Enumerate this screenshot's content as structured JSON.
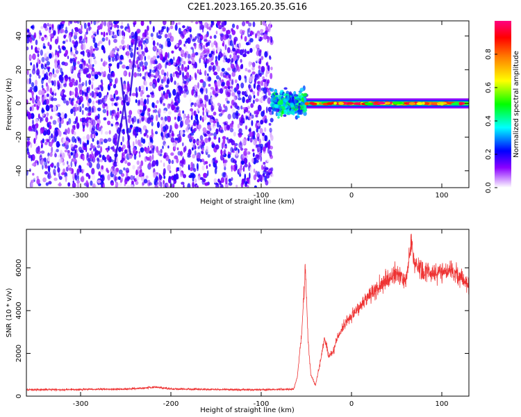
{
  "title": "C2E1.2023.165.20.35.G16",
  "chart_data": [
    {
      "type": "heatmap",
      "xlabel": "Height of straight line (km)",
      "ylabel": "Frequency (Hz)",
      "xlim": [
        -360,
        130
      ],
      "ylim": [
        -50,
        49
      ],
      "xticks": [
        -300,
        -200,
        -100,
        0,
        100
      ],
      "yticks": [
        -40,
        -20,
        0,
        20,
        40
      ],
      "colorbar": {
        "label": "Normalized spectral amplitude",
        "range": [
          0,
          1
        ],
        "ticks": [
          0.0,
          0.2,
          0.4,
          0.6,
          0.8
        ],
        "colormap": [
          "#ffffff",
          "#8b00ff",
          "#0000ff",
          "#00ffff",
          "#00ff00",
          "#ffff00",
          "#ff8000",
          "#ff0000",
          "#ff0080"
        ]
      },
      "regions": [
        {
          "x_range": [
            -360,
            -88
          ],
          "freq_range": [
            -50,
            49
          ],
          "amplitude_range": [
            0.0,
            0.25
          ],
          "pattern": "noise"
        },
        {
          "x_range": [
            -88,
            -50
          ],
          "center_freq": 0,
          "spread_hz": 10,
          "amplitude_range": [
            0.2,
            0.5
          ]
        },
        {
          "x_range": [
            -50,
            130
          ],
          "center_freq": 0,
          "spread_hz": 3,
          "amplitude_range": [
            0.4,
            1.0
          ]
        }
      ],
      "streaks": [
        {
          "x": [
            -245,
            -238
          ],
          "y": [
            5,
            40
          ]
        },
        {
          "x": [
            -262,
            -250
          ],
          "y": [
            -35,
            5
          ]
        },
        {
          "x": [
            -245,
            -255
          ],
          "y": [
            -30,
            15
          ]
        }
      ]
    },
    {
      "type": "line",
      "xlabel": "Height of straight line (km)",
      "ylabel": "SNR (10 * v/v)",
      "xlim": [
        -360,
        130
      ],
      "ylim": [
        0,
        7800
      ],
      "xticks": [
        -300,
        -200,
        -100,
        0,
        100
      ],
      "yticks": [
        0,
        2000,
        4000,
        6000
      ],
      "color": "#ee3333",
      "x": [
        -360,
        -300,
        -250,
        -215,
        -200,
        -150,
        -100,
        -80,
        -64,
        -60,
        -55,
        -51,
        -48,
        -45,
        -40,
        -35,
        -30,
        -25,
        -20,
        -15,
        -10,
        -5,
        0,
        10,
        20,
        30,
        40,
        50,
        60,
        66,
        70,
        80,
        90,
        100,
        110,
        120,
        130
      ],
      "y": [
        300,
        310,
        330,
        420,
        340,
        310,
        300,
        310,
        330,
        900,
        3000,
        6000,
        2500,
        1000,
        500,
        1500,
        2700,
        1900,
        2100,
        2800,
        3200,
        3500,
        3800,
        4200,
        4700,
        5100,
        5500,
        5700,
        5400,
        7200,
        6200,
        5800,
        5800,
        5800,
        5900,
        5600,
        5200
      ]
    }
  ]
}
